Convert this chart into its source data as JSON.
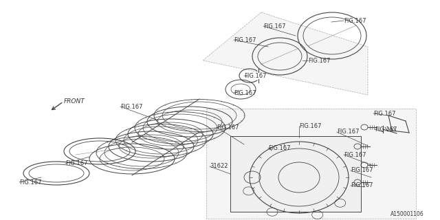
{
  "bg_color": "#ffffff",
  "line_color": "#444444",
  "text_color": "#333333",
  "fig_label": "FIG.167",
  "part_label": "31622",
  "diagram_id": "A150001106",
  "front_label": "FRONT",
  "label_fontsize": 6.0,
  "small_fontsize": 5.5,
  "lw": 0.7,
  "disk_lw": 0.6
}
